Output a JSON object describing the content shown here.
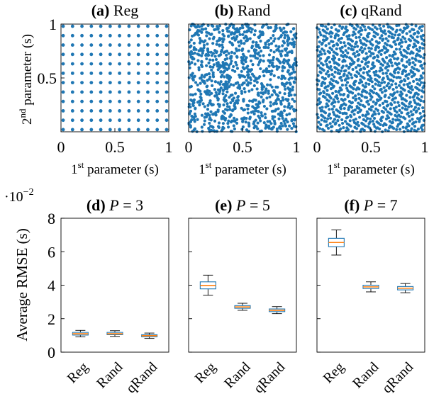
{
  "figure": {
    "shared_ylabel_top": "2nd parameter (s)",
    "shared_ylabel_bottom": "Average RMSE (s)",
    "bottom_scale_label": "·10−2"
  },
  "colors": {
    "points": "#1f77b4",
    "box_edge": "#1f77b4",
    "median": "#ff7f0e",
    "whisker": "#000000",
    "frame": "#000000"
  },
  "chart_data": [
    {
      "id": "a",
      "type": "scatter",
      "title_tag": "(a)",
      "title_text": "Reg",
      "xlabel": "1st parameter (s)",
      "ylabel": "2nd parameter (s)",
      "xlim": [
        0,
        1
      ],
      "ylim": [
        0,
        1
      ],
      "xticks": [
        "0",
        "0.5",
        "1"
      ],
      "yticks": [
        "0.5",
        "1"
      ],
      "sampling": "regular grid",
      "grid_points_per_axis": 12,
      "n_points": 144
    },
    {
      "id": "b",
      "type": "scatter",
      "title_tag": "(b)",
      "title_text": "Rand",
      "xlabel": "1st parameter (s)",
      "xlim": [
        0,
        1
      ],
      "ylim": [
        0,
        1
      ],
      "xticks": [
        "0",
        "0.5",
        "1"
      ],
      "sampling": "uniform random",
      "n_points": 1000
    },
    {
      "id": "c",
      "type": "scatter",
      "title_tag": "(c)",
      "title_text": "qRand",
      "xlabel": "1st parameter (s)",
      "xlim": [
        0,
        1
      ],
      "ylim": [
        0,
        1
      ],
      "xticks": [
        "0",
        "0.5",
        "1"
      ],
      "sampling": "quasi-random (low discrepancy)",
      "n_points": 1000
    },
    {
      "id": "d",
      "type": "box",
      "title_tag": "(d)",
      "title_text": "P = 3",
      "ylabel": "Average RMSE (s)",
      "yscale": "·10−2",
      "ylim": [
        0,
        8
      ],
      "yticks": [
        "0",
        "2",
        "4",
        "6",
        "8"
      ],
      "categories": [
        "Reg",
        "Rand",
        "qRand"
      ],
      "boxes": [
        {
          "whislo": 0.92,
          "q1": 1.02,
          "med": 1.1,
          "q3": 1.18,
          "whishi": 1.3
        },
        {
          "whislo": 0.94,
          "q1": 1.04,
          "med": 1.1,
          "q3": 1.18,
          "whishi": 1.28
        },
        {
          "whislo": 0.82,
          "q1": 0.92,
          "med": 0.98,
          "q3": 1.04,
          "whishi": 1.14
        }
      ]
    },
    {
      "id": "e",
      "type": "box",
      "title_tag": "(e)",
      "title_text": "P = 5",
      "ylim": [
        0,
        8
      ],
      "categories": [
        "Reg",
        "Rand",
        "qRand"
      ],
      "boxes": [
        {
          "whislo": 3.4,
          "q1": 3.78,
          "med": 3.98,
          "q3": 4.2,
          "whishi": 4.6
        },
        {
          "whislo": 2.5,
          "q1": 2.62,
          "med": 2.7,
          "q3": 2.78,
          "whishi": 2.92
        },
        {
          "whislo": 2.3,
          "q1": 2.42,
          "med": 2.5,
          "q3": 2.58,
          "whishi": 2.72
        }
      ]
    },
    {
      "id": "f",
      "type": "box",
      "title_tag": "(f)",
      "title_text": "P = 7",
      "ylim": [
        0,
        8
      ],
      "categories": [
        "Reg",
        "Rand",
        "qRand"
      ],
      "boxes": [
        {
          "whislo": 5.8,
          "q1": 6.3,
          "med": 6.55,
          "q3": 6.8,
          "whishi": 7.3
        },
        {
          "whislo": 3.6,
          "q1": 3.8,
          "med": 3.9,
          "q3": 4.0,
          "whishi": 4.2
        },
        {
          "whislo": 3.55,
          "q1": 3.72,
          "med": 3.82,
          "q3": 3.92,
          "whishi": 4.1
        }
      ]
    }
  ]
}
